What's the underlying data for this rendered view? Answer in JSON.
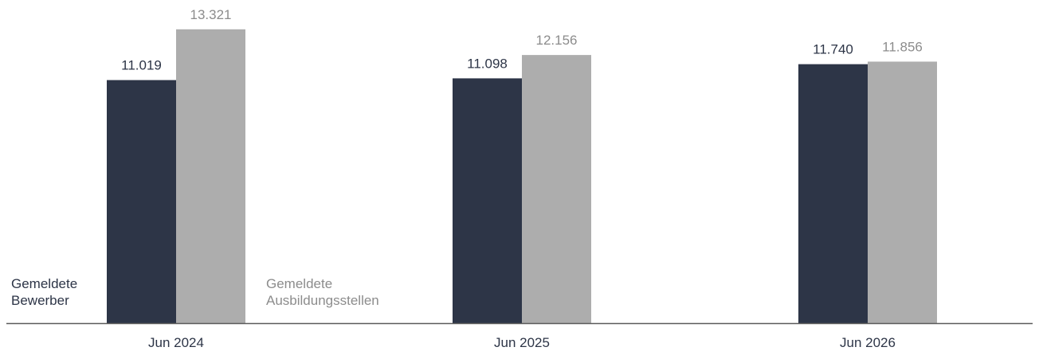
{
  "chart_data": {
    "type": "bar",
    "categories": [
      "Jun 2024",
      "Jun 2025",
      "Jun 2026"
    ],
    "series": [
      {
        "name": "Gemeldete Bewerber",
        "name_lines": [
          "Gemeldete",
          "Bewerber"
        ],
        "values": [
          11019,
          11098,
          11740
        ],
        "labels": [
          "11.019",
          "11.098",
          "11.740"
        ],
        "color": "#2d3547"
      },
      {
        "name": "Gemeldete Ausbildungsstellen",
        "name_lines": [
          "Gemeldete",
          "Ausbildungsstellen"
        ],
        "values": [
          13321,
          12156,
          11856
        ],
        "labels": [
          "13.321",
          "12.156",
          "11.856"
        ],
        "color": "#adadad"
      }
    ],
    "ylim": [
      0,
      14000
    ],
    "grid": false,
    "legend": "inline, bottom-left"
  }
}
